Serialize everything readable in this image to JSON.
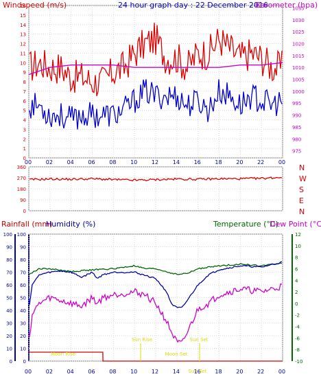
{
  "chart_data": [
    {
      "type": "line",
      "title": "24 hour graph day : 22 December 2016",
      "ylabel": "Windspeed (m/s)",
      "y2label": "Barometer (hpa)",
      "x_ticks": [
        "00",
        "02",
        "04",
        "06",
        "08",
        "10",
        "12",
        "14",
        "16",
        "18",
        "20",
        "22",
        "00"
      ],
      "y_ticks": [
        "0",
        "1",
        "2",
        "3",
        "4",
        "5",
        "6",
        "7",
        "8",
        "9",
        "10",
        "11",
        "12",
        "13",
        "14",
        "15",
        "16"
      ],
      "y2_ticks": [
        "975",
        "980",
        "985",
        "990",
        "995",
        "1000",
        "1005",
        "1010",
        "1015",
        "1020",
        "1025",
        "1030",
        "1035"
      ],
      "ylim": [
        0,
        16
      ],
      "y2lim": [
        972,
        1036
      ],
      "grid": true,
      "colors": {
        "gust": "#dd0000",
        "average": "#0000cc",
        "barometer": "#cc00cc",
        "left_axis": "#dd0000",
        "right_axis": "#cc00cc"
      },
      "series": [
        {
          "key": "gust",
          "axis": "left",
          "x": [
            0,
            1,
            2,
            3,
            4,
            5,
            6,
            7,
            8,
            9,
            10,
            11,
            12,
            13,
            14,
            15,
            16,
            17,
            18,
            19,
            20,
            21,
            22,
            23,
            24
          ],
          "values": [
            9.5,
            10,
            9.5,
            9.5,
            8.5,
            8.5,
            8,
            8,
            9,
            9.5,
            11,
            12,
            12.5,
            10.5,
            10.5,
            9.5,
            11,
            11,
            12.5,
            11.5,
            10.5,
            11,
            10.5,
            9.5,
            9.5
          ]
        },
        {
          "key": "average",
          "axis": "left",
          "x": [
            0,
            1,
            2,
            3,
            4,
            5,
            6,
            7,
            8,
            9,
            10,
            11,
            12,
            13,
            14,
            15,
            16,
            17,
            18,
            19,
            20,
            21,
            22,
            23,
            24
          ],
          "values": [
            5.5,
            5.5,
            4.5,
            4.5,
            4,
            4.5,
            4.5,
            4.5,
            4.5,
            5,
            6,
            7,
            6.5,
            6.5,
            6.5,
            5.5,
            6,
            5,
            7,
            6.5,
            5.5,
            6.5,
            6,
            5.5,
            6
          ]
        },
        {
          "key": "barometer",
          "axis": "right",
          "x": [
            0,
            2,
            4,
            6,
            8,
            10,
            12,
            14,
            16,
            18,
            20,
            22,
            24
          ],
          "values": [
            1007,
            1010,
            1011,
            1011,
            1011,
            1010,
            1010,
            1010,
            1010,
            1010,
            1011,
            1011,
            1012
          ]
        }
      ]
    },
    {
      "type": "line",
      "y_ticks": [
        "0",
        "90",
        "180",
        "270",
        "360"
      ],
      "y_label_letters": [
        "N",
        "W",
        "S",
        "E",
        "N"
      ],
      "ylim": [
        0,
        360
      ],
      "color": "#dd0000",
      "series": [
        {
          "key": "wind_direction",
          "x": [
            0,
            2,
            4,
            6,
            8,
            10,
            12,
            14,
            16,
            18,
            20,
            22,
            24
          ],
          "values": [
            255,
            260,
            258,
            262,
            255,
            250,
            255,
            260,
            258,
            262,
            262,
            265,
            275
          ]
        }
      ]
    },
    {
      "type": "line",
      "labels": {
        "rainfall": "Rainfall (mm)",
        "humidity": "Humidity (%)",
        "temperature": "Temperature (°C)",
        "dewpoint": "Dew Point (°C)"
      },
      "x_ticks": [
        "00",
        "02",
        "04",
        "06",
        "08",
        "10",
        "12",
        "14",
        "16",
        "18",
        "20",
        "22",
        "00"
      ],
      "rain_ticks": [
        "0",
        "10",
        "20",
        "30",
        "40",
        "50",
        "60",
        "70",
        "80",
        "90",
        "100"
      ],
      "humidity_ticks": [
        "0",
        "10",
        "20",
        "30",
        "40",
        "50",
        "60",
        "70",
        "80",
        "90",
        "100"
      ],
      "temp_ticks": [
        "12",
        "10",
        "8",
        "6",
        "4",
        "2",
        "0",
        "-2",
        "-4",
        "-6",
        "-8",
        "-10"
      ],
      "ylim_pct": [
        0,
        100
      ],
      "ylim_temp": [
        -10,
        12
      ],
      "colors": {
        "rainfall": "#cc0000",
        "humidity": "#0000aa",
        "temperature": "#006600",
        "dewpoint": "#cc00cc",
        "temp_axis": "#006600"
      },
      "annotations": [
        "Moon Rise",
        "Sun Rise",
        "Moon Set",
        "Sun Set",
        "Sun Set"
      ],
      "annotation_color": "#dddd00",
      "series": [
        {
          "key": "temperature",
          "axis": "temp",
          "x": [
            0,
            0.5,
            1,
            2,
            4,
            6,
            8,
            10,
            11,
            12,
            13,
            14,
            15,
            16,
            18,
            20,
            22,
            24
          ],
          "values": [
            5,
            5.5,
            6,
            6,
            5.5,
            5.8,
            6,
            6.5,
            6,
            6,
            5.5,
            5,
            5.2,
            6,
            6.5,
            6.8,
            6.5,
            7
          ]
        },
        {
          "key": "humidity",
          "axis": "pct",
          "x": [
            0,
            0.3,
            1,
            2,
            3,
            4,
            5,
            6,
            6.5,
            7,
            8,
            10,
            12,
            13,
            13.5,
            14,
            14.5,
            15,
            16,
            17,
            18,
            20,
            22,
            23,
            24
          ],
          "values": [
            40,
            60,
            68,
            70,
            71,
            70,
            66,
            70,
            65,
            68,
            70,
            70,
            65,
            55,
            45,
            42,
            42,
            48,
            60,
            68,
            72,
            75,
            74,
            76,
            78
          ]
        },
        {
          "key": "dewpoint",
          "axis": "temp",
          "x": [
            0,
            0.3,
            1,
            2,
            3,
            4,
            5,
            6,
            6.5,
            7,
            8,
            10,
            11,
            12,
            13,
            13.5,
            14,
            14.5,
            15,
            16,
            17,
            18,
            20,
            22,
            23,
            24
          ],
          "values": [
            -7,
            -2,
            0,
            1,
            0.5,
            0,
            -0.5,
            1,
            0,
            1,
            1.5,
            2,
            1.5,
            0,
            -3,
            -5,
            -6.8,
            -7,
            -5,
            -1,
            0,
            1.5,
            2.5,
            2,
            2.5,
            3
          ]
        },
        {
          "key": "rainfall",
          "axis": "pct",
          "x": [
            0,
            7,
            7.01,
            24
          ],
          "values": [
            7,
            7,
            0,
            0
          ]
        }
      ]
    }
  ]
}
